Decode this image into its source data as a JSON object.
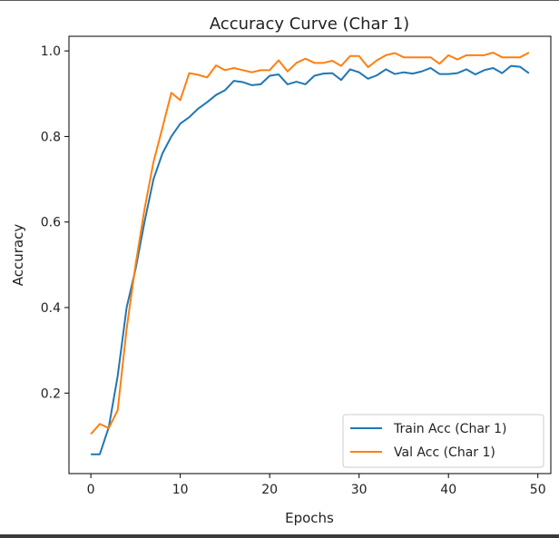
{
  "chart_data": {
    "type": "line",
    "title": "Accuracy Curve (Char 1)",
    "xlabel": "Epochs",
    "ylabel": "Accuracy",
    "xlim": [
      -2.45,
      51.45
    ],
    "ylim": [
      0.0118,
      1.0342
    ],
    "xticks": [
      0,
      10,
      20,
      30,
      40,
      50
    ],
    "yticks": [
      0.2,
      0.4,
      0.6,
      0.8,
      1.0
    ],
    "xtick_labels": [
      "0",
      "10",
      "20",
      "30",
      "40",
      "50"
    ],
    "ytick_labels": [
      "0.2",
      "0.4",
      "0.6",
      "0.8",
      "1.0"
    ],
    "grid": false,
    "legend_position": "lower-right",
    "x": [
      0,
      1,
      2,
      3,
      4,
      5,
      6,
      7,
      8,
      9,
      10,
      11,
      12,
      13,
      14,
      15,
      16,
      17,
      18,
      19,
      20,
      21,
      22,
      23,
      24,
      25,
      26,
      27,
      28,
      29,
      30,
      31,
      32,
      33,
      34,
      35,
      36,
      37,
      38,
      39,
      40,
      41,
      42,
      43,
      44,
      45,
      46,
      47,
      48,
      49
    ],
    "series": [
      {
        "name": "Train Acc (Char 1)",
        "color": "#1f77b4",
        "values": [
          0.057,
          0.057,
          0.12,
          0.24,
          0.4,
          0.49,
          0.6,
          0.7,
          0.76,
          0.8,
          0.83,
          0.845,
          0.865,
          0.88,
          0.897,
          0.908,
          0.93,
          0.927,
          0.92,
          0.922,
          0.942,
          0.945,
          0.922,
          0.928,
          0.922,
          0.942,
          0.947,
          0.948,
          0.932,
          0.957,
          0.95,
          0.935,
          0.943,
          0.957,
          0.946,
          0.95,
          0.947,
          0.952,
          0.96,
          0.946,
          0.946,
          0.948,
          0.957,
          0.945,
          0.955,
          0.96,
          0.948,
          0.965,
          0.963,
          0.948
        ]
      },
      {
        "name": "Val Acc (Char 1)",
        "color": "#ff7f0e",
        "values": [
          0.104,
          0.128,
          0.118,
          0.16,
          0.35,
          0.5,
          0.63,
          0.74,
          0.82,
          0.902,
          0.885,
          0.948,
          0.944,
          0.938,
          0.966,
          0.955,
          0.96,
          0.955,
          0.95,
          0.955,
          0.955,
          0.978,
          0.952,
          0.972,
          0.982,
          0.972,
          0.972,
          0.977,
          0.965,
          0.988,
          0.988,
          0.962,
          0.978,
          0.99,
          0.995,
          0.985,
          0.985,
          0.985,
          0.985,
          0.97,
          0.99,
          0.98,
          0.99,
          0.99,
          0.99,
          0.996,
          0.985,
          0.985,
          0.985,
          0.996
        ]
      }
    ]
  }
}
